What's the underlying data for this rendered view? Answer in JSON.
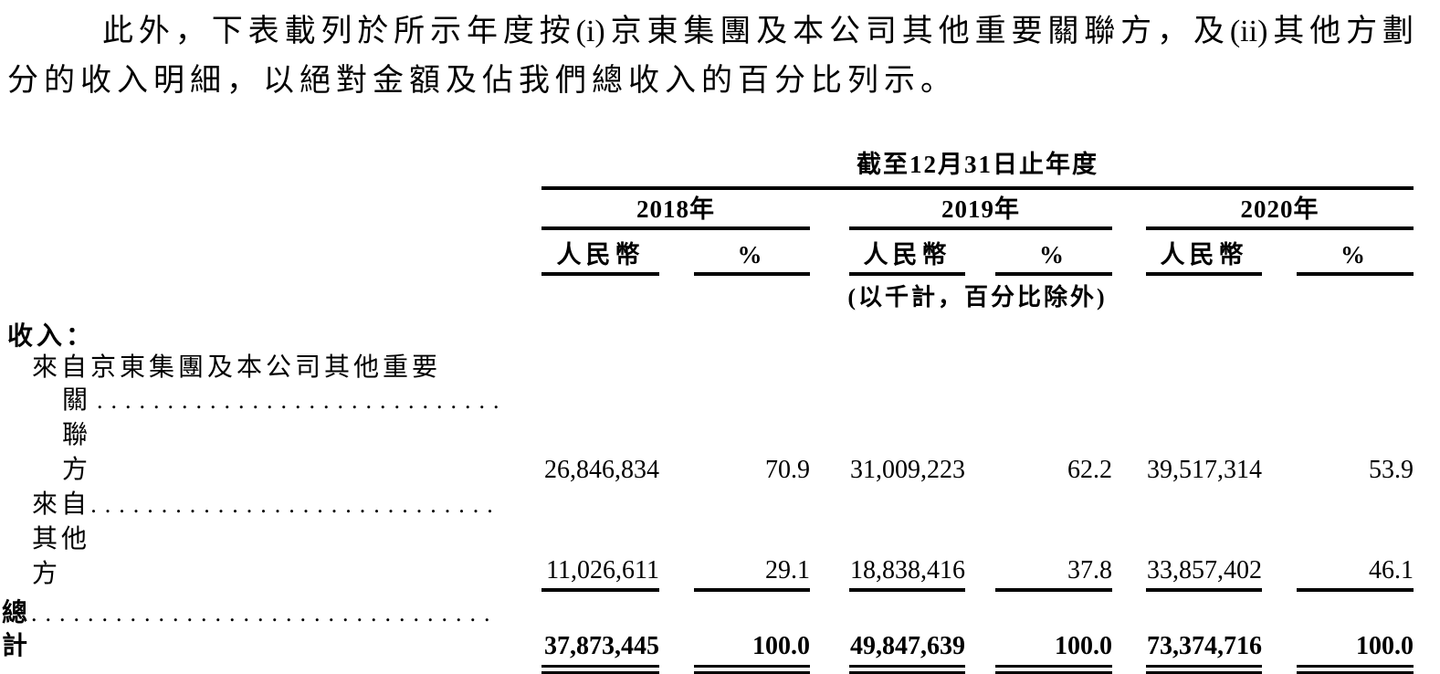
{
  "paragraph": {
    "line1": "此外，下表載列於所示年度按(i)京東集團及本公司其他重要關聯方，及(ii)其他方劃",
    "line2": "分的收入明細，以絕對金額及佔我們總收入的百分比列示。"
  },
  "table": {
    "span_header": "截至12月31日止年度",
    "year_groups": [
      {
        "label": "2018年"
      },
      {
        "label": "2019年"
      },
      {
        "label": "2020年"
      }
    ],
    "col_headers": {
      "rmb": "人民幣",
      "pct": "%"
    },
    "unit_note": "(以千計，百分比除外)",
    "section_label": "收入：",
    "rows": [
      {
        "label_line1": "來自京東集團及本公司其他重要",
        "label_line2": "關聯方",
        "values": [
          "26,846,834",
          "70.9",
          "31,009,223",
          "62.2",
          "39,517,314",
          "53.9"
        ]
      },
      {
        "label": "來自其他方",
        "values": [
          "11,026,611",
          "29.1",
          "18,838,416",
          "37.8",
          "33,857,402",
          "46.1"
        ]
      }
    ],
    "total_row": {
      "label": "總計",
      "values": [
        "37,873,445",
        "100.0",
        "49,847,639",
        "100.0",
        "73,374,716",
        "100.0"
      ]
    }
  }
}
